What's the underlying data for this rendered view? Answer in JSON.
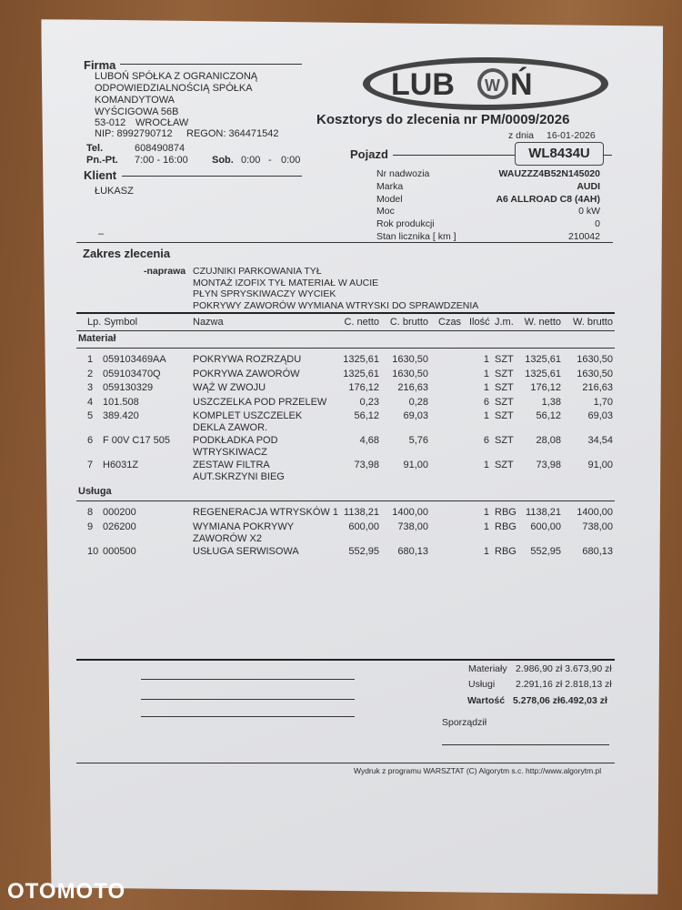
{
  "firma": {
    "label": "Firma",
    "name_lines": [
      "LUBOŃ SPÓŁKA Z OGRANICZONĄ",
      "ODPOWIEDZIALNOŚCIĄ SPÓŁKA",
      "KOMANDYTOWA"
    ],
    "street": "WYŚCIGOWA 56B",
    "zip": "53-012",
    "city": "WROCŁAW",
    "nip": "NIP: 8992790712",
    "regon": "REGON: 364471542",
    "tel_label": "Tel.",
    "tel": "608490874",
    "hours_label": "Pn.-Pt.",
    "hours": "7:00 - 16:00",
    "sat_label": "Sob.",
    "sat_from": "0:00",
    "sat_sep": "-",
    "sat_to": "0:00"
  },
  "klient": {
    "label": "Klient",
    "name": "ŁUKASZ",
    "dash": "–"
  },
  "logo": {
    "text": "LUBOŃ",
    "brand": "VW"
  },
  "doc": {
    "title": "Kosztorys do zlecenia nr PM/0009/2026",
    "date_label": "z dnia",
    "date": "16-01-2026"
  },
  "pojazd": {
    "label": "Pojazd",
    "plate": "WL8434U",
    "fields": [
      {
        "label": "Nr nadwozia",
        "value": "WAUZZZ4B52N145020",
        "bold": true
      },
      {
        "label": "Marka",
        "value": "AUDI",
        "bold": true
      },
      {
        "label": "Model",
        "value": "A6 ALLROAD C8 (4AH)",
        "bold": true
      },
      {
        "label": "Moc",
        "value": "0  kW",
        "bold": false
      },
      {
        "label": "Rok produkcji",
        "value": "0",
        "bold": false
      },
      {
        "label": "Stan licznika [  km  ]",
        "value": "210042",
        "bold": false
      }
    ]
  },
  "zakres": {
    "title": "Zakres zlecenia",
    "type": "-naprawa",
    "lines": [
      "CZUJNIKI PARKOWANIA TYŁ",
      "MONTAŻ IZOFIX TYŁ MATERIAŁ W AUCIE",
      "PŁYN SPRYSKIWACZY WYCIEK",
      "POKRYWY ZAWORÓW WYMIANA WTRYSKI DO SPRAWDZENIA"
    ]
  },
  "table": {
    "headers": {
      "lp_symbol": "Lp. Symbol",
      "nazwa": "Nazwa",
      "c_netto": "C. netto",
      "c_brutto": "C. brutto",
      "czas": "Czas",
      "ilosc": "Ilość",
      "jm": "J.m.",
      "w_netto": "W. netto",
      "w_brutto": "W. brutto"
    },
    "sections": [
      {
        "title": "Materiał",
        "rows": [
          {
            "lp": "1",
            "symbol": "059103469AA",
            "nazwa": [
              "POKRYWA ROZRZĄDU"
            ],
            "c_netto": "1325,61",
            "c_brutto": "1630,50",
            "czas": "",
            "ilosc": "1",
            "jm": "SZT",
            "w_netto": "1325,61",
            "w_brutto": "1630,50"
          },
          {
            "lp": "2",
            "symbol": "059103470Q",
            "nazwa": [
              "POKRYWA ZAWORÓW"
            ],
            "c_netto": "1325,61",
            "c_brutto": "1630,50",
            "czas": "",
            "ilosc": "1",
            "jm": "SZT",
            "w_netto": "1325,61",
            "w_brutto": "1630,50"
          },
          {
            "lp": "3",
            "symbol": "059130329",
            "nazwa": [
              "WĄŻ W ZWOJU"
            ],
            "c_netto": "176,12",
            "c_brutto": "216,63",
            "czas": "",
            "ilosc": "1",
            "jm": "SZT",
            "w_netto": "176,12",
            "w_brutto": "216,63"
          },
          {
            "lp": "4",
            "symbol": "101.508",
            "nazwa": [
              "USZCZELKA POD PRZELEW"
            ],
            "c_netto": "0,23",
            "c_brutto": "0,28",
            "czas": "",
            "ilosc": "6",
            "jm": "SZT",
            "w_netto": "1,38",
            "w_brutto": "1,70"
          },
          {
            "lp": "5",
            "symbol": "389.420",
            "nazwa": [
              "KOMPLET USZCZELEK",
              "DEKLA ZAWOR."
            ],
            "c_netto": "56,12",
            "c_brutto": "69,03",
            "czas": "",
            "ilosc": "1",
            "jm": "SZT",
            "w_netto": "56,12",
            "w_brutto": "69,03"
          },
          {
            "lp": "6",
            "symbol": "F 00V C17 505",
            "nazwa": [
              "PODKŁADKA POD",
              "WTRYSKIWACZ"
            ],
            "c_netto": "4,68",
            "c_brutto": "5,76",
            "czas": "",
            "ilosc": "6",
            "jm": "SZT",
            "w_netto": "28,08",
            "w_brutto": "34,54"
          },
          {
            "lp": "7",
            "symbol": "H6031Z",
            "nazwa": [
              "ZESTAW FILTRA",
              "AUT.SKRZYNI BIEG"
            ],
            "c_netto": "73,98",
            "c_brutto": "91,00",
            "czas": "",
            "ilosc": "1",
            "jm": "SZT",
            "w_netto": "73,98",
            "w_brutto": "91,00"
          }
        ]
      },
      {
        "title": "Usługa",
        "rows": [
          {
            "lp": "8",
            "symbol": "000200",
            "nazwa": [
              "REGENERACJA WTRYSKÓW 1"
            ],
            "c_netto": "1138,21",
            "c_brutto": "1400,00",
            "czas": "",
            "ilosc": "1",
            "jm": "RBG",
            "w_netto": "1138,21",
            "w_brutto": "1400,00"
          },
          {
            "lp": "9",
            "symbol": "026200",
            "nazwa": [
              "WYMIANA POKRYWY",
              "ZAWORÓW X2"
            ],
            "c_netto": "600,00",
            "c_brutto": "738,00",
            "czas": "",
            "ilosc": "1",
            "jm": "RBG",
            "w_netto": "600,00",
            "w_brutto": "738,00"
          },
          {
            "lp": "10",
            "symbol": "000500",
            "nazwa": [
              "USŁUGA SERWISOWA"
            ],
            "c_netto": "552,95",
            "c_brutto": "680,13",
            "czas": "",
            "ilosc": "1",
            "jm": "RBG",
            "w_netto": "552,95",
            "w_brutto": "680,13"
          }
        ]
      }
    ]
  },
  "totals": {
    "materialy_label": "Materiały",
    "materialy": "2.986,90 zł 3.673,90 zł",
    "uslugi_label": "Usługi",
    "uslugi": "2.291,16 zł 2.818,13 zł",
    "wartosc_label": "Wartość",
    "wartosc": "5.278,06 zł6.492,03 zł",
    "sporzadzil": "Sporządził"
  },
  "footer": "Wydruk z programu WARSZTAT (C) Algorytm s.c. http://www.algorytm.pl",
  "watermark": "OTOMOTO"
}
